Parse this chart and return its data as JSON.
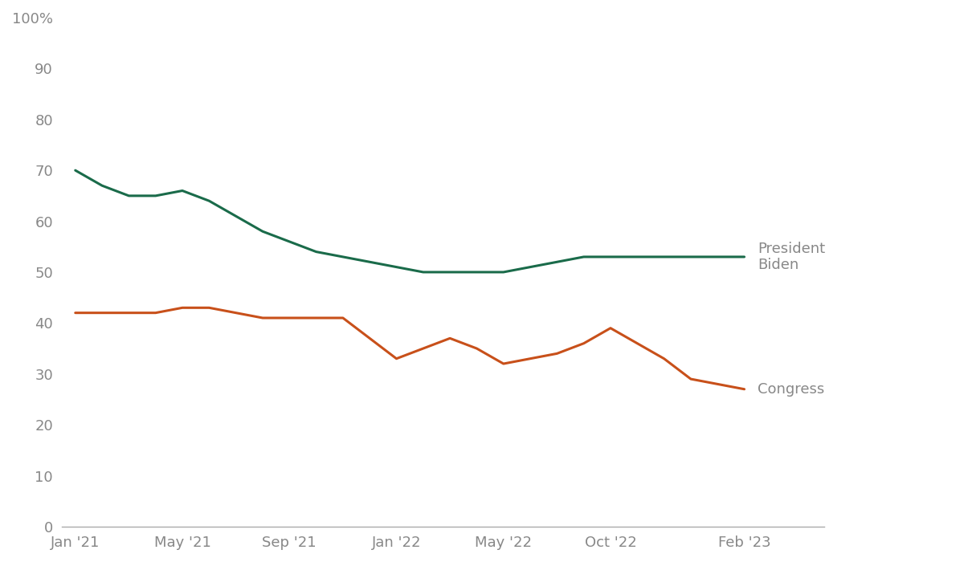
{
  "biden_x": [
    0,
    1,
    2,
    3,
    4,
    5,
    6,
    7,
    8,
    9,
    10,
    11,
    12,
    13,
    14,
    15,
    16,
    17,
    18,
    19,
    20,
    21,
    22,
    23,
    24,
    25
  ],
  "biden_y": [
    70,
    67,
    65,
    65,
    66,
    64,
    61,
    58,
    56,
    54,
    53,
    52,
    51,
    50,
    50,
    50,
    50,
    51,
    52,
    53,
    53,
    53,
    53,
    53,
    53,
    53
  ],
  "congress_x": [
    0,
    1,
    2,
    3,
    4,
    5,
    6,
    7,
    8,
    9,
    10,
    11,
    12,
    13,
    14,
    15,
    16,
    17,
    18,
    19,
    20,
    21,
    22,
    23,
    24,
    25
  ],
  "congress_y": [
    42,
    42,
    42,
    42,
    43,
    43,
    42,
    41,
    41,
    41,
    41,
    37,
    33,
    35,
    37,
    35,
    32,
    33,
    34,
    36,
    39,
    36,
    33,
    29,
    28,
    27
  ],
  "x_tick_positions": [
    0,
    4,
    8,
    12,
    16,
    20,
    25
  ],
  "x_tick_labels": [
    "Jan '21",
    "May '21",
    "Sep '21",
    "Jan '22",
    "May '22",
    "Oct '22",
    "Feb '23"
  ],
  "y_tick_positions": [
    0,
    10,
    20,
    30,
    40,
    50,
    60,
    70,
    80,
    90,
    100
  ],
  "y_tick_labels": [
    "0",
    "10",
    "20",
    "30",
    "40",
    "50",
    "60",
    "70",
    "80",
    "90",
    "100%"
  ],
  "biden_color": "#1a6b4a",
  "congress_color": "#c8501a",
  "biden_label": "President\nBiden",
  "congress_label": "Congress",
  "line_width": 2.2,
  "background_color": "#ffffff",
  "label_color": "#888888",
  "axis_color": "#aaaaaa"
}
